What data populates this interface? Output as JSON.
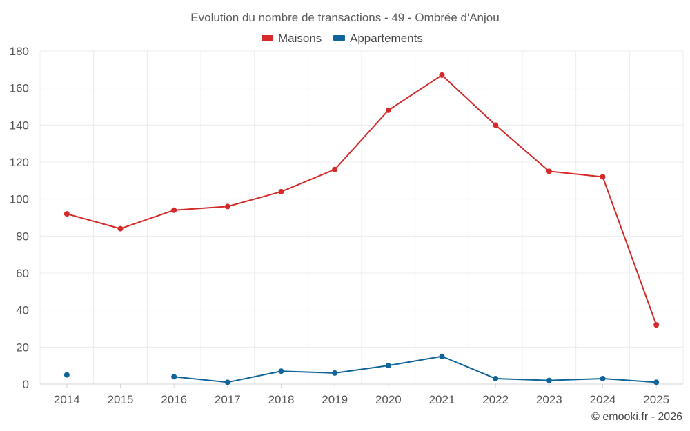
{
  "chart_data": {
    "type": "line",
    "title": "Evolution du nombre de transactions - 49 - Ombrée d'Anjou",
    "categories": [
      "2014",
      "2015",
      "2016",
      "2017",
      "2018",
      "2019",
      "2020",
      "2021",
      "2022",
      "2023",
      "2024",
      "2025"
    ],
    "ylim": [
      0,
      180
    ],
    "yticks": [
      0,
      20,
      40,
      60,
      80,
      100,
      120,
      140,
      160,
      180
    ],
    "grid": true,
    "legend": "top-center",
    "xlabel": "",
    "ylabel": "",
    "series": [
      {
        "name": "Maisons",
        "color": "#d42a2a",
        "values": [
          92,
          84,
          94,
          96,
          104,
          116,
          148,
          167,
          140,
          115,
          112,
          32
        ]
      },
      {
        "name": "Appartements",
        "color": "#0f6499",
        "values": [
          5,
          null,
          4,
          1,
          7,
          6,
          10,
          15,
          3,
          2,
          3,
          1
        ]
      }
    ],
    "credit": "© emooki.fr - 2026"
  }
}
